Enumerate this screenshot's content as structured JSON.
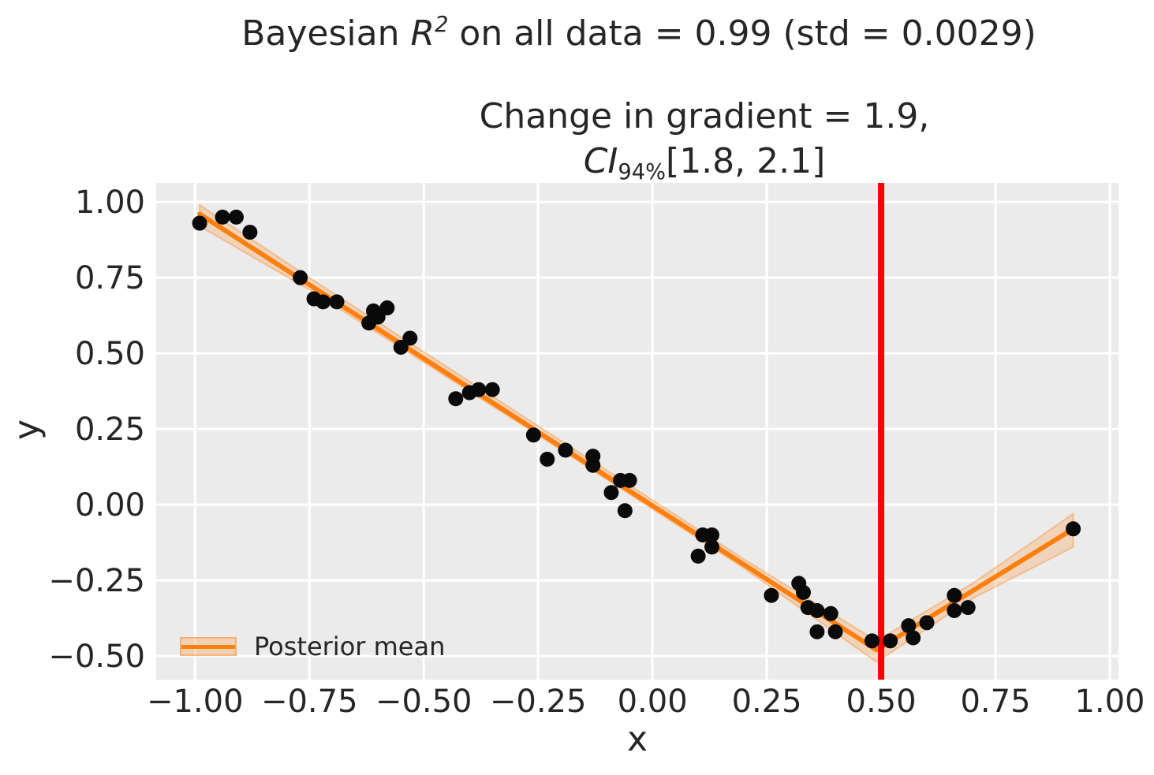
{
  "figure": {
    "title": {
      "plain": "Bayesian R2 on all data = 0.99 (std = 0.0029)",
      "parts": [
        {
          "text": "Bayesian ",
          "style": "normal"
        },
        {
          "text": "R",
          "style": "italic"
        },
        {
          "text": "2",
          "style": "superscript"
        },
        {
          "text": " on all data = 0.99 (std = 0.0029)",
          "style": "normal"
        }
      ]
    },
    "axes_title": {
      "line1": "Change in gradient = 1.9,",
      "line2_plain": "CI94%[1.8, 2.1]",
      "line2_parts": [
        {
          "text": "CI",
          "style": "italic"
        },
        {
          "text": "94%",
          "style": "subscript"
        },
        {
          "text": "[1.8, 2.1]",
          "style": "normal"
        }
      ]
    }
  },
  "legend": {
    "position": "lower-left",
    "items": [
      {
        "label": "Posterior mean",
        "swatch": "band-with-line",
        "color": "#ff7f0e"
      }
    ]
  },
  "colors": {
    "posterior_mean": "#ff7f0e",
    "credible_band_fill": "#ff7f0e",
    "changepoint_line": "#ff0000",
    "scatter": "#0a0a0a",
    "plot_background": "#ebebeb",
    "gridline": "#ffffff",
    "text": "#262626"
  },
  "chart_data": {
    "type": "scatter",
    "title": "Bayesian R^2 on all data = 0.99 (std = 0.0029)",
    "subtitle": "Change in gradient = 1.9, CI_94%[1.8, 2.1]",
    "xlabel": "x",
    "ylabel": "y",
    "grid": true,
    "legend_position": "lower left",
    "xlim": [
      -1.085,
      1.019
    ],
    "ylim": [
      -0.578,
      1.063
    ],
    "xticks": [
      {
        "value": -1.0,
        "label": "−1.00"
      },
      {
        "value": -0.75,
        "label": "−0.75"
      },
      {
        "value": -0.5,
        "label": "−0.50"
      },
      {
        "value": -0.25,
        "label": "−0.25"
      },
      {
        "value": 0.0,
        "label": "0.00"
      },
      {
        "value": 0.25,
        "label": "0.25"
      },
      {
        "value": 0.5,
        "label": "0.50"
      },
      {
        "value": 0.75,
        "label": "0.75"
      },
      {
        "value": 1.0,
        "label": "1.00"
      }
    ],
    "yticks": [
      {
        "value": 1.0,
        "label": "1.00"
      },
      {
        "value": 0.75,
        "label": "0.75"
      },
      {
        "value": 0.5,
        "label": "0.50"
      },
      {
        "value": 0.25,
        "label": "0.25"
      },
      {
        "value": 0.0,
        "label": "0.00"
      },
      {
        "value": -0.25,
        "label": "−0.25"
      },
      {
        "value": -0.5,
        "label": "−0.50"
      }
    ],
    "scatter_points": [
      [
        -0.99,
        0.93
      ],
      [
        -0.94,
        0.95
      ],
      [
        -0.91,
        0.95
      ],
      [
        -0.88,
        0.9
      ],
      [
        -0.77,
        0.75
      ],
      [
        -0.74,
        0.68
      ],
      [
        -0.72,
        0.67
      ],
      [
        -0.69,
        0.67
      ],
      [
        -0.62,
        0.6
      ],
      [
        -0.61,
        0.64
      ],
      [
        -0.6,
        0.62
      ],
      [
        -0.58,
        0.65
      ],
      [
        -0.55,
        0.52
      ],
      [
        -0.53,
        0.55
      ],
      [
        -0.43,
        0.35
      ],
      [
        -0.4,
        0.37
      ],
      [
        -0.38,
        0.38
      ],
      [
        -0.35,
        0.38
      ],
      [
        -0.26,
        0.23
      ],
      [
        -0.23,
        0.15
      ],
      [
        -0.19,
        0.18
      ],
      [
        -0.13,
        0.16
      ],
      [
        -0.13,
        0.13
      ],
      [
        -0.09,
        0.04
      ],
      [
        -0.07,
        0.08
      ],
      [
        -0.05,
        0.08
      ],
      [
        -0.06,
        -0.02
      ],
      [
        0.1,
        -0.17
      ],
      [
        0.11,
        -0.1
      ],
      [
        0.13,
        -0.1
      ],
      [
        0.13,
        -0.14
      ],
      [
        0.26,
        -0.3
      ],
      [
        0.32,
        -0.26
      ],
      [
        0.33,
        -0.29
      ],
      [
        0.34,
        -0.34
      ],
      [
        0.36,
        -0.35
      ],
      [
        0.36,
        -0.42
      ],
      [
        0.39,
        -0.36
      ],
      [
        0.4,
        -0.42
      ],
      [
        0.48,
        -0.45
      ],
      [
        0.52,
        -0.45
      ],
      [
        0.56,
        -0.4
      ],
      [
        0.57,
        -0.44
      ],
      [
        0.6,
        -0.39
      ],
      [
        0.66,
        -0.3
      ],
      [
        0.66,
        -0.35
      ],
      [
        0.69,
        -0.34
      ],
      [
        0.92,
        -0.08
      ]
    ],
    "posterior_mean_line": {
      "name": "Posterior mean",
      "points": [
        [
          -0.99,
          0.96
        ],
        [
          0.49,
          -0.48
        ],
        [
          0.92,
          -0.08
        ]
      ]
    },
    "credible_band": {
      "upper": [
        [
          -0.99,
          0.99
        ],
        [
          -0.75,
          0.75
        ],
        [
          -0.25,
          0.26
        ],
        [
          0.2,
          -0.18
        ],
        [
          0.49,
          -0.45
        ],
        [
          0.7,
          -0.26
        ],
        [
          0.92,
          -0.03
        ]
      ],
      "lower": [
        [
          -0.99,
          0.92
        ],
        [
          -0.75,
          0.71
        ],
        [
          -0.25,
          0.23
        ],
        [
          0.2,
          -0.21
        ],
        [
          0.49,
          -0.52
        ],
        [
          0.7,
          -0.31
        ],
        [
          0.92,
          -0.14
        ]
      ],
      "opacity": 0.22
    },
    "changepoint_line": {
      "x": 0.5
    },
    "annotations": {
      "r2": 0.99,
      "r2_std": 0.0029,
      "change_in_gradient": 1.9,
      "ci_level": "94%",
      "ci_lower": 1.8,
      "ci_upper": 2.1
    }
  }
}
